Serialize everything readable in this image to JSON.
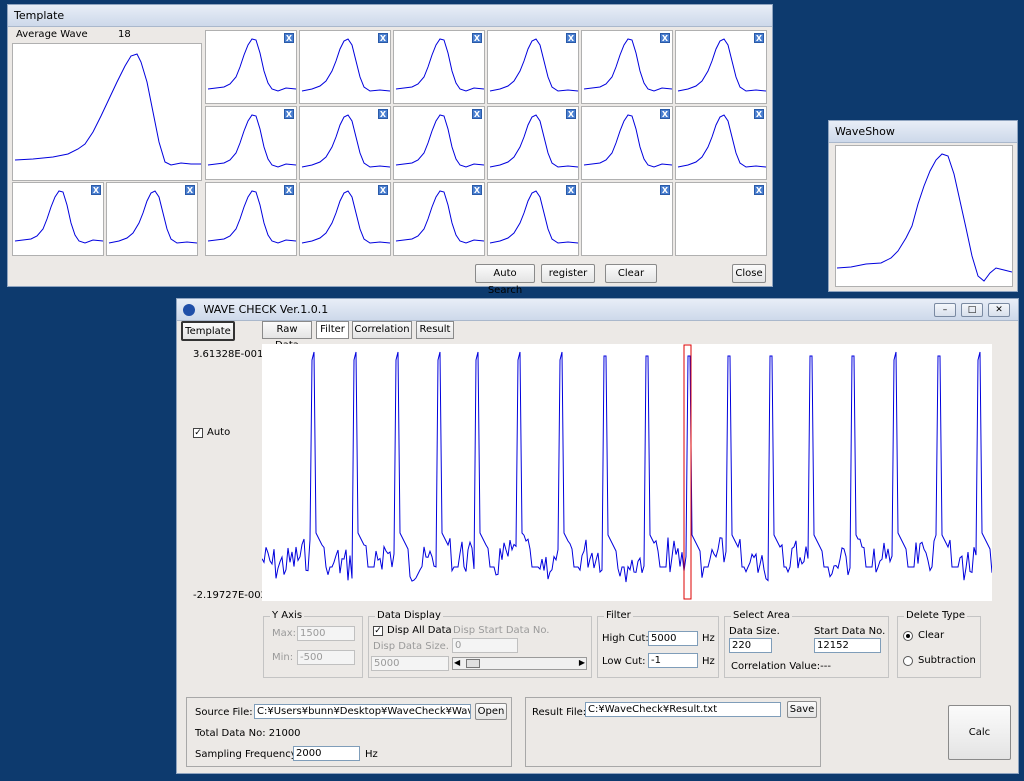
{
  "template_window": {
    "title": "Template",
    "average_label": "Average  Wave",
    "count": "18",
    "close_glyph": "X",
    "buttons": {
      "auto_search": "Auto Search",
      "register": "register",
      "clear": "Clear",
      "close": "Close"
    }
  },
  "waveshow_window": {
    "title": "WaveShow"
  },
  "main_window": {
    "title": "WAVE CHECK Ver.1.0.1",
    "template_button": "Template",
    "tabs": [
      "Raw Data",
      "Filter",
      "Correlation",
      "Result"
    ],
    "selected_tab": "Filter",
    "y_max_label": "3.61328E-001",
    "y_min_label": "-2.19727E-002",
    "auto_label": "Auto",
    "auto_checked": true,
    "y_axis": {
      "title": "Y Axis",
      "max_label": "Max:",
      "max_value": "1500",
      "min_label": "Min:",
      "min_value": "-500"
    },
    "data_display": {
      "title": "Data Display",
      "disp_all_label": "Disp All Data",
      "disp_all_checked": true,
      "start_label": "Disp Start Data No.",
      "start_value": "0",
      "size_label": "Disp Data Size.",
      "size_value": "5000"
    },
    "filter": {
      "title": "Filter",
      "high_label": "High Cut:",
      "high_value": "5000",
      "low_label": "Low Cut:",
      "low_value": "-1",
      "unit": "Hz"
    },
    "select_area": {
      "title": "Select Area",
      "size_label": "Data Size.",
      "size_value": "220",
      "start_label": "Start Data No.",
      "start_value": "12152",
      "correlation_label": "Correlation Value:---"
    },
    "delete_type": {
      "title": "Delete Type",
      "options": [
        "Clear",
        "Subtraction"
      ],
      "selected": "Clear"
    },
    "source": {
      "label": "Source File:",
      "value": "C:¥Users¥bunn¥Desktop¥WaveCheck¥WaveCheck",
      "open": "Open",
      "total_label": "Total Data No: 21000",
      "sampling_label": "Sampling Frequency:",
      "sampling_value": "2000",
      "unit": "Hz"
    },
    "result": {
      "label": "Result File:",
      "value": "C:¥WaveCheck¥Result.txt",
      "save": "Save"
    },
    "calc": "Calc"
  },
  "colors": {
    "desktop": "#0d3a6e",
    "wave": "#0000dd",
    "selection": "#dd0000"
  }
}
